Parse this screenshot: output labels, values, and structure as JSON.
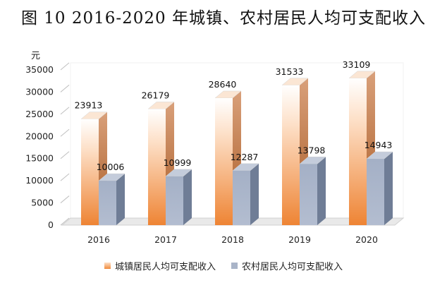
{
  "chart_data": {
    "type": "bar",
    "title": "图 10 2016-2020 年城镇、农村居民人均可支配收入",
    "ylabel": "元",
    "categories": [
      "2016",
      "2017",
      "2018",
      "2019",
      "2020"
    ],
    "yticks": [
      "0",
      "5000",
      "10000",
      "15000",
      "20000",
      "25000",
      "30000",
      "35000"
    ],
    "ylim": [
      0,
      35000
    ],
    "grid": false,
    "legend_position": "bottom",
    "series": [
      {
        "name": "城镇居民人均可支配收入",
        "values": [
          23913,
          26179,
          28640,
          31533,
          33109
        ],
        "color": "#f08a3a"
      },
      {
        "name": "农村居民人均可支配收入",
        "values": [
          10006,
          10999,
          12287,
          13798,
          14943
        ],
        "color": "#a9b4c8"
      }
    ]
  }
}
